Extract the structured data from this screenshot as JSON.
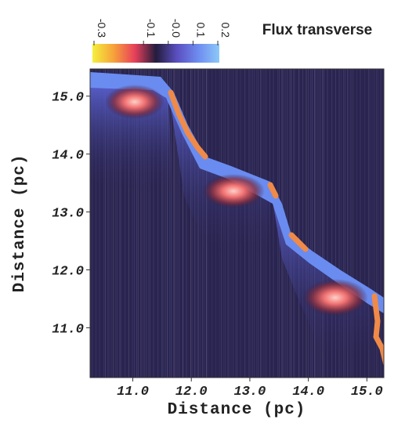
{
  "chart_data": {
    "type": "heatmap",
    "xlabel": "Distance (pc)",
    "ylabel": "Distance (pc)",
    "xlim": [
      10.27,
      15.29
    ],
    "ylim": [
      10.14,
      15.47
    ],
    "xticks": [
      {
        "value": 11,
        "label": "11.0"
      },
      {
        "value": 12,
        "label": "12.0"
      },
      {
        "value": 13,
        "label": "13.0"
      },
      {
        "value": 14,
        "label": "14.0"
      },
      {
        "value": 15,
        "label": "15.0"
      }
    ],
    "yticks": [
      {
        "value": 11,
        "label": "11.0"
      },
      {
        "value": 12,
        "label": "12.0"
      },
      {
        "value": 13,
        "label": "13.0"
      },
      {
        "value": 14,
        "label": "14.0"
      },
      {
        "value": 15,
        "label": "15.0"
      }
    ],
    "colorbar": {
      "title": "Flux transverse",
      "lim": [
        -0.3,
        0.2
      ],
      "ticks": [
        -0.3,
        -0.1,
        {
          "value": 0,
          "label": "-0.0"
        },
        0.1,
        0.2
      ],
      "colors": [
        "#f4f03c",
        "#f7a23a",
        "#e8405a",
        "#241c3c",
        "#5a4fc0",
        "#6e8cf0",
        "#8cc8f8"
      ]
    }
  }
}
